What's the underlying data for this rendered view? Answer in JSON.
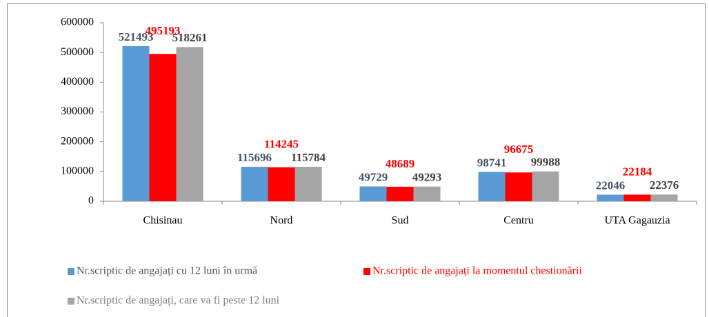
{
  "chart_data": {
    "type": "bar",
    "categories": [
      "Chisinau",
      "Nord",
      "Sud",
      "Centru",
      "UTA Gagauzia"
    ],
    "series": [
      {
        "name": "Nr.scriptic de angajați cu 12 luni în urmă",
        "color": "#5b9bd5",
        "values": [
          521493,
          115696,
          49729,
          98741,
          22046
        ]
      },
      {
        "name": "Nr.scriptic de angajați la momentul chestionării",
        "color": "#ff0000",
        "values": [
          495193,
          114245,
          48689,
          96675,
          22184
        ]
      },
      {
        "name": "Nr.scriptic de angajați, care va fi peste 12 luni",
        "color": "#a5a5a5",
        "values": [
          518261,
          115784,
          49293,
          99988,
          22376
        ]
      }
    ],
    "ylim": [
      0,
      600000
    ],
    "yticks": [
      0,
      100000,
      200000,
      300000,
      400000,
      500000,
      600000
    ],
    "grid": false,
    "legend": "bottom"
  }
}
